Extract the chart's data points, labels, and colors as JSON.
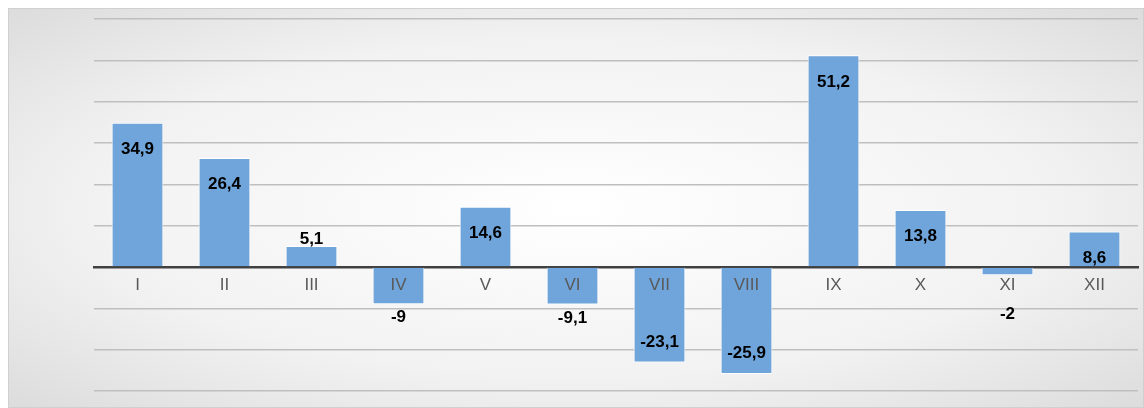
{
  "chart_data": {
    "type": "bar",
    "categories": [
      "I",
      "II",
      "III",
      "IV",
      "V",
      "VI",
      "VII",
      "VIII",
      "IX",
      "X",
      "XI",
      "XII"
    ],
    "values": [
      34.9,
      26.4,
      5.1,
      -9,
      14.6,
      -9.1,
      -23.1,
      -25.9,
      51.2,
      13.8,
      -2,
      8.6
    ],
    "value_labels": [
      "34,9",
      "26,4",
      "5,1",
      "-9",
      "14,6",
      "-9,1",
      "-23,1",
      "-25,9",
      "51,2",
      "13,8",
      "-2",
      "8,6"
    ],
    "color": "#6fa5da",
    "grid": "y",
    "tick_labels": "x",
    "legend": false
  }
}
